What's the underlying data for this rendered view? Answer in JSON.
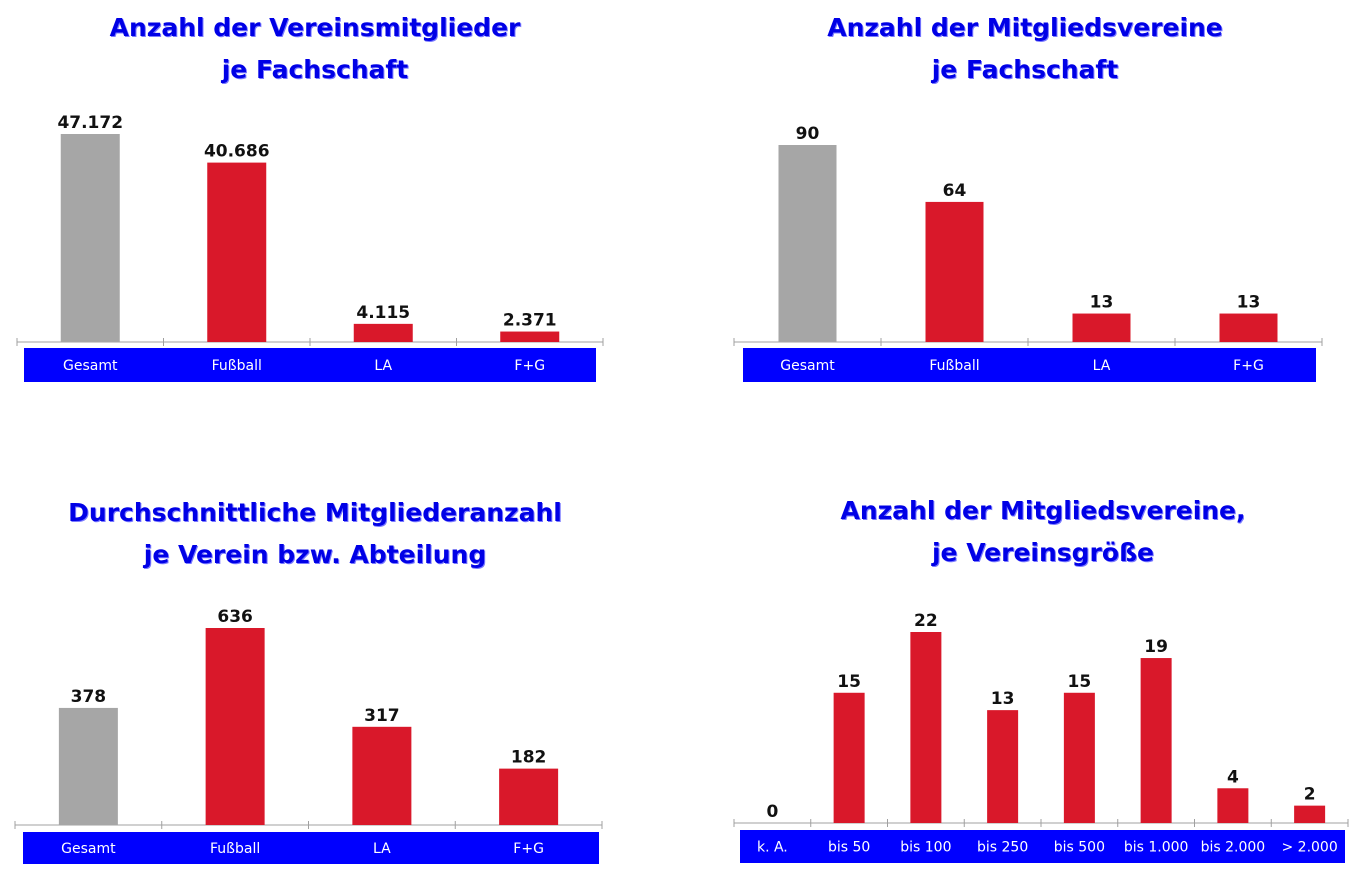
{
  "chart_data": [
    {
      "type": "bar",
      "title_lines": [
        "Anzahl der Vereinsmitglieder",
        "je Fachschaft"
      ],
      "categories": [
        "Gesamt",
        "Fußball",
        "LA",
        "F+G"
      ],
      "values": [
        47172,
        40686,
        4115,
        2371
      ],
      "value_labels": [
        "47.172",
        "40.686",
        "4.115",
        "2.371"
      ],
      "ylim": [
        0,
        47172
      ],
      "colors": [
        "#a6a6a6",
        "#d9182a",
        "#d9182a",
        "#d9182a"
      ],
      "axis_band_color": "#0000ff",
      "grid": false
    },
    {
      "type": "bar",
      "title_lines": [
        "Anzahl der Mitgliedsvereine",
        "je Fachschaft"
      ],
      "categories": [
        "Gesamt",
        "Fußball",
        "LA",
        "F+G"
      ],
      "values": [
        90,
        64,
        13,
        13
      ],
      "value_labels": [
        "90",
        "64",
        "13",
        "13"
      ],
      "ylim": [
        0,
        90
      ],
      "colors": [
        "#a6a6a6",
        "#d9182a",
        "#d9182a",
        "#d9182a"
      ],
      "axis_band_color": "#0000ff",
      "grid": false
    },
    {
      "type": "bar",
      "title_lines": [
        "Durchschnittliche Mitgliederanzahl",
        "je Verein bzw. Abteilung"
      ],
      "categories": [
        "Gesamt",
        "Fußball",
        "LA",
        "F+G"
      ],
      "values": [
        378,
        636,
        317,
        182
      ],
      "value_labels": [
        "378",
        "636",
        "317",
        "182"
      ],
      "ylim": [
        0,
        636
      ],
      "colors": [
        "#a6a6a6",
        "#d9182a",
        "#d9182a",
        "#d9182a"
      ],
      "axis_band_color": "#0000ff",
      "grid": false
    },
    {
      "type": "bar",
      "title_lines": [
        "Anzahl der Mitgliedsvereine,",
        "je Vereinsgröße"
      ],
      "categories": [
        "k. A.",
        "bis 50",
        "bis 100",
        "bis 250",
        "bis 500",
        "bis 1.000",
        "bis 2.000",
        "> 2.000"
      ],
      "values": [
        0,
        15,
        22,
        13,
        15,
        19,
        4,
        2
      ],
      "value_labels": [
        "0",
        "15",
        "22",
        "13",
        "15",
        "19",
        "4",
        "2"
      ],
      "ylim": [
        0,
        22
      ],
      "colors": [
        "#d9182a",
        "#d9182a",
        "#d9182a",
        "#d9182a",
        "#d9182a",
        "#d9182a",
        "#d9182a",
        "#d9182a"
      ],
      "axis_band_color": "#0000ff",
      "grid": false
    }
  ]
}
